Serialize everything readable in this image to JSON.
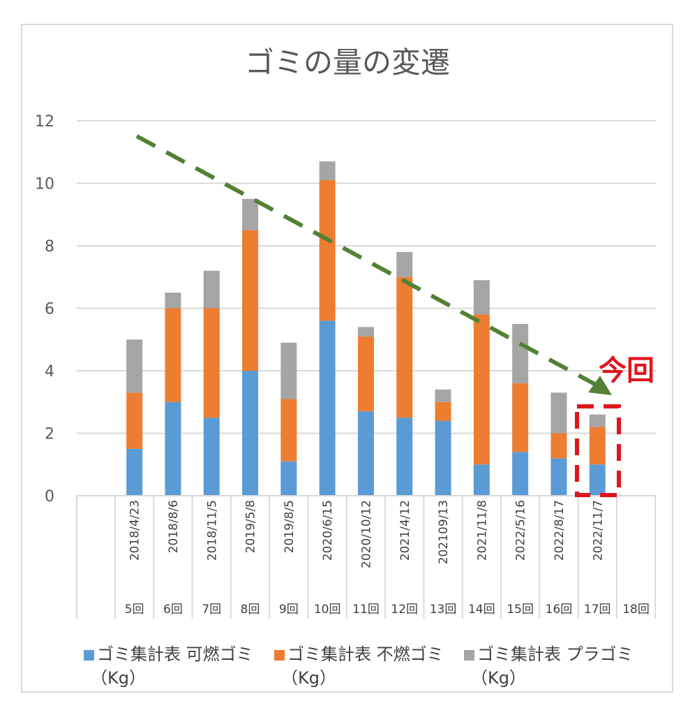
{
  "chart_data": {
    "type": "bar",
    "stacked": true,
    "title": "ゴミの量の変遷",
    "categories": [
      "2018/4/23",
      "2018/8/6",
      "2018/11/5",
      "2019/5/8",
      "2019/8/5",
      "2020/6/15",
      "2020/10/12",
      "2021/4/12",
      "202109/13",
      "2021/11/8",
      "2022/5/16",
      "2022/8/17",
      "2022/11/7",
      ""
    ],
    "rounds": [
      "5回",
      "6回",
      "7回",
      "8回",
      "9回",
      "10回",
      "11回",
      "12回",
      "13回",
      "14回",
      "15回",
      "16回",
      "17回",
      "18回"
    ],
    "series": [
      {
        "name": "ゴミ集計表 可燃ゴミ",
        "unit": "（Kg）",
        "color": "#5b9bd5",
        "values": [
          1.5,
          3.0,
          2.5,
          4.0,
          1.1,
          5.6,
          2.7,
          2.5,
          2.4,
          1.0,
          1.4,
          1.2,
          1.0,
          null
        ]
      },
      {
        "name": "ゴミ集計表 不燃ゴミ",
        "unit": "（Kg）",
        "color": "#ed7d31",
        "values": [
          1.8,
          3.0,
          3.5,
          4.5,
          2.0,
          4.5,
          2.4,
          4.5,
          0.6,
          4.8,
          2.2,
          0.8,
          1.2,
          null
        ]
      },
      {
        "name": "ゴミ集計表 プラゴミ",
        "unit": "（Kg）",
        "color": "#a5a5a5",
        "values": [
          1.7,
          0.5,
          1.2,
          1.0,
          1.8,
          0.6,
          0.3,
          0.8,
          0.4,
          1.1,
          1.9,
          1.3,
          0.4,
          null
        ]
      }
    ],
    "ylim": [
      0,
      12
    ],
    "yticks": [
      0,
      2,
      4,
      6,
      8,
      10,
      12
    ],
    "grid": true,
    "legend_position": "bottom",
    "annotation": {
      "label": "今回",
      "label_color": "#e0141c",
      "arrow_color": "#538135",
      "highlight_category": "2022/11/7"
    }
  }
}
